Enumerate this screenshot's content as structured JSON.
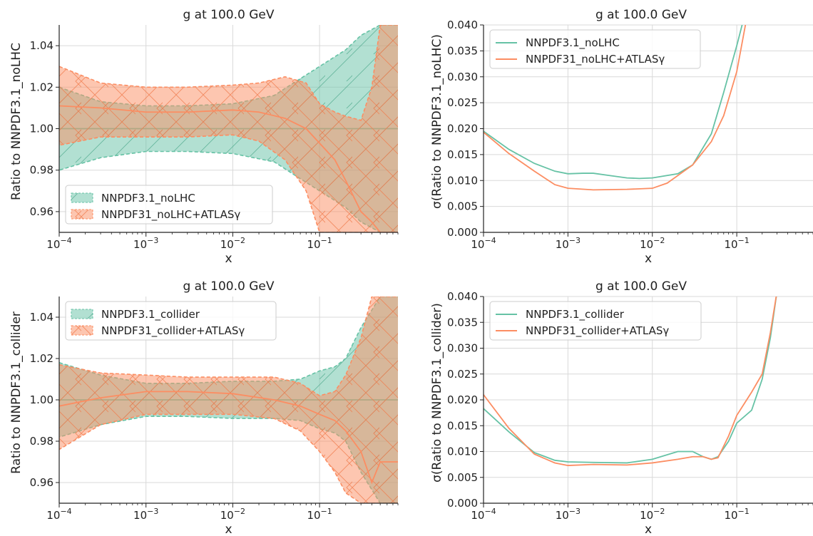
{
  "colors": {
    "green": "#66c2a5",
    "orange": "#fc8d62",
    "grid": "#d9d9d9",
    "axis": "#222222"
  },
  "chart_data": [
    {
      "id": "p1",
      "type": "area",
      "title": "g at 100.0 GeV",
      "xlabel": "x",
      "ylabel": "Ratio to NNPDF3.1_noLHC",
      "xscale": "log",
      "xlim": [
        0.0001,
        0.8
      ],
      "ylim": [
        0.95,
        1.05
      ],
      "yticks": [
        0.96,
        0.98,
        1.0,
        1.02,
        1.04
      ],
      "ytick_labels": [
        "0.96",
        "0.98",
        "1.00",
        "1.02",
        "1.04"
      ],
      "xticks": [
        0.0001,
        0.001,
        0.01,
        0.1
      ],
      "xtick_labels": [
        "10",
        "10",
        "10",
        "10"
      ],
      "xtick_exps": [
        "−4",
        "−3",
        "−2",
        "−1"
      ],
      "grid": true,
      "legend": "lower-left",
      "series": [
        {
          "name": "NNPDF3.1_noLHC",
          "color": "green",
          "hatch": "/",
          "x": [
            0.0001,
            0.0003,
            0.001,
            0.003,
            0.01,
            0.03,
            0.05,
            0.1,
            0.2,
            0.3,
            0.5,
            0.8
          ],
          "center": [
            1.0,
            1.0,
            1.0,
            1.0,
            1.0,
            1.0,
            1.0,
            1.0,
            1.0,
            1.0,
            1.0,
            1.0
          ],
          "upper": [
            1.02,
            1.013,
            1.011,
            1.011,
            1.012,
            1.016,
            1.022,
            1.03,
            1.038,
            1.045,
            1.05,
            1.05
          ],
          "lower": [
            0.98,
            0.986,
            0.989,
            0.989,
            0.988,
            0.984,
            0.978,
            0.97,
            0.962,
            0.955,
            0.95,
            0.95
          ]
        },
        {
          "name": "NNPDF31_noLHC+ATLASγ",
          "color": "orange",
          "hatch": "x",
          "x": [
            0.0001,
            0.0003,
            0.001,
            0.003,
            0.01,
            0.02,
            0.04,
            0.07,
            0.1,
            0.15,
            0.2,
            0.3,
            0.4,
            0.5,
            0.6,
            0.8
          ],
          "center": [
            1.011,
            1.01,
            1.008,
            1.008,
            1.009,
            1.008,
            1.005,
            1.0,
            0.993,
            0.985,
            0.975,
            0.96,
            0.955,
            0.95,
            0.95,
            0.95
          ],
          "upper": [
            1.03,
            1.022,
            1.02,
            1.02,
            1.021,
            1.022,
            1.025,
            1.022,
            1.012,
            1.008,
            1.006,
            1.004,
            1.02,
            1.05,
            1.05,
            1.05
          ],
          "lower": [
            0.992,
            0.996,
            0.996,
            0.996,
            0.997,
            0.994,
            0.985,
            0.97,
            0.95,
            0.95,
            0.95,
            0.95,
            0.95,
            0.95,
            0.95,
            0.95
          ]
        }
      ]
    },
    {
      "id": "p2",
      "type": "line",
      "title": "g at 100.0 GeV",
      "xlabel": "x",
      "ylabel": "σ(Ratio to NNPDF3.1_noLHC)",
      "xscale": "log",
      "xlim": [
        0.0001,
        0.8
      ],
      "ylim": [
        0,
        0.04
      ],
      "yticks": [
        0,
        0.005,
        0.01,
        0.015,
        0.02,
        0.025,
        0.03,
        0.035,
        0.04
      ],
      "ytick_labels": [
        "0.000",
        "0.005",
        "0.010",
        "0.015",
        "0.020",
        "0.025",
        "0.030",
        "0.035",
        "0.040"
      ],
      "xticks": [
        0.0001,
        0.001,
        0.01,
        0.1
      ],
      "xtick_labels": [
        "10",
        "10",
        "10",
        "10"
      ],
      "xtick_exps": [
        "−4",
        "−3",
        "−2",
        "−1"
      ],
      "grid": true,
      "legend": "top-left",
      "series": [
        {
          "name": "NNPDF3.1_noLHC",
          "color": "green",
          "x": [
            0.0001,
            0.0002,
            0.0004,
            0.0007,
            0.001,
            0.0015,
            0.002,
            0.003,
            0.005,
            0.007,
            0.01,
            0.02,
            0.03,
            0.05,
            0.07,
            0.1,
            0.12
          ],
          "y": [
            0.0195,
            0.016,
            0.0133,
            0.0118,
            0.0113,
            0.0114,
            0.0114,
            0.011,
            0.0105,
            0.0104,
            0.0105,
            0.0113,
            0.013,
            0.019,
            0.027,
            0.036,
            0.041
          ]
        },
        {
          "name": "NNPDF31_noLHC+ATLASγ",
          "color": "orange",
          "x": [
            0.0001,
            0.0002,
            0.0004,
            0.0007,
            0.001,
            0.002,
            0.005,
            0.01,
            0.015,
            0.03,
            0.05,
            0.07,
            0.1,
            0.13
          ],
          "y": [
            0.0193,
            0.0152,
            0.0118,
            0.0092,
            0.0085,
            0.0082,
            0.0083,
            0.0085,
            0.0095,
            0.013,
            0.0175,
            0.0225,
            0.031,
            0.041
          ]
        }
      ]
    },
    {
      "id": "p3",
      "type": "area",
      "title": "g at 100.0 GeV",
      "xlabel": "x",
      "ylabel": "Ratio to NNPDF3.1_collider",
      "xscale": "log",
      "xlim": [
        0.0001,
        0.8
      ],
      "ylim": [
        0.95,
        1.05
      ],
      "yticks": [
        0.96,
        0.98,
        1.0,
        1.02,
        1.04
      ],
      "ytick_labels": [
        "0.96",
        "0.98",
        "1.00",
        "1.02",
        "1.04"
      ],
      "xticks": [
        0.0001,
        0.001,
        0.01,
        0.1
      ],
      "xtick_labels": [
        "10",
        "10",
        "10",
        "10"
      ],
      "xtick_exps": [
        "−4",
        "−3",
        "−2",
        "−1"
      ],
      "grid": true,
      "legend": "top-left",
      "series": [
        {
          "name": "NNPDF3.1_collider",
          "color": "green",
          "hatch": "/",
          "x": [
            0.0001,
            0.0003,
            0.001,
            0.003,
            0.01,
            0.03,
            0.06,
            0.1,
            0.15,
            0.2,
            0.3,
            0.5,
            0.8
          ],
          "center": [
            1.0,
            1.0,
            1.0,
            1.0,
            1.0,
            1.0,
            1.0,
            1.0,
            1.0,
            1.0,
            1.0,
            1.0,
            1.0
          ],
          "upper": [
            1.018,
            1.012,
            1.008,
            1.008,
            1.009,
            1.009,
            1.01,
            1.014,
            1.016,
            1.02,
            1.035,
            1.05,
            1.05
          ],
          "lower": [
            0.982,
            0.988,
            0.992,
            0.992,
            0.991,
            0.991,
            0.99,
            0.986,
            0.984,
            0.98,
            0.965,
            0.95,
            0.95
          ]
        },
        {
          "name": "NNPDF31_collider+ATLASγ",
          "color": "orange",
          "hatch": "x",
          "x": [
            0.0001,
            0.0003,
            0.001,
            0.003,
            0.01,
            0.03,
            0.06,
            0.1,
            0.15,
            0.2,
            0.3,
            0.4,
            0.5,
            0.8
          ],
          "center": [
            0.997,
            1.001,
            1.004,
            1.004,
            1.003,
            1.0,
            0.997,
            0.993,
            0.99,
            0.985,
            0.975,
            0.96,
            0.97,
            0.97
          ],
          "upper": [
            1.017,
            1.013,
            1.012,
            1.011,
            1.011,
            1.011,
            1.008,
            1.002,
            1.004,
            1.012,
            1.03,
            1.05,
            1.05,
            1.05
          ],
          "lower": [
            0.976,
            0.988,
            0.993,
            0.993,
            0.993,
            0.991,
            0.985,
            0.975,
            0.965,
            0.955,
            0.95,
            0.95,
            0.95,
            0.95
          ]
        }
      ]
    },
    {
      "id": "p4",
      "type": "line",
      "title": "g at 100.0 GeV",
      "xlabel": "x",
      "ylabel": "σ(Ratio to NNPDF3.1_collider)",
      "xscale": "log",
      "xlim": [
        0.0001,
        0.8
      ],
      "ylim": [
        0,
        0.04
      ],
      "yticks": [
        0,
        0.005,
        0.01,
        0.015,
        0.02,
        0.025,
        0.03,
        0.035,
        0.04
      ],
      "ytick_labels": [
        "0.000",
        "0.005",
        "0.010",
        "0.015",
        "0.020",
        "0.025",
        "0.030",
        "0.035",
        "0.040"
      ],
      "xticks": [
        0.0001,
        0.001,
        0.01,
        0.1
      ],
      "xtick_labels": [
        "10",
        "10",
        "10",
        "10"
      ],
      "xtick_exps": [
        "−4",
        "−3",
        "−2",
        "−1"
      ],
      "grid": true,
      "legend": "top-left",
      "series": [
        {
          "name": "NNPDF3.1_collider",
          "color": "green",
          "x": [
            0.0001,
            0.0002,
            0.0004,
            0.0007,
            0.001,
            0.002,
            0.005,
            0.01,
            0.02,
            0.03,
            0.04,
            0.05,
            0.06,
            0.08,
            0.1,
            0.15,
            0.2,
            0.25,
            0.3
          ],
          "y": [
            0.0183,
            0.0138,
            0.0098,
            0.0083,
            0.008,
            0.0079,
            0.0078,
            0.0085,
            0.01,
            0.01,
            0.009,
            0.0085,
            0.009,
            0.012,
            0.0155,
            0.018,
            0.024,
            0.032,
            0.041
          ]
        },
        {
          "name": "NNPDF31_collider+ATLASγ",
          "color": "orange",
          "x": [
            0.0001,
            0.0002,
            0.0004,
            0.0007,
            0.001,
            0.002,
            0.005,
            0.01,
            0.02,
            0.03,
            0.04,
            0.05,
            0.06,
            0.08,
            0.1,
            0.15,
            0.2,
            0.25,
            0.3
          ],
          "y": [
            0.021,
            0.0145,
            0.0095,
            0.0078,
            0.0073,
            0.0075,
            0.0074,
            0.0078,
            0.0085,
            0.009,
            0.009,
            0.0085,
            0.0088,
            0.013,
            0.017,
            0.0215,
            0.025,
            0.033,
            0.041
          ]
        }
      ]
    }
  ]
}
